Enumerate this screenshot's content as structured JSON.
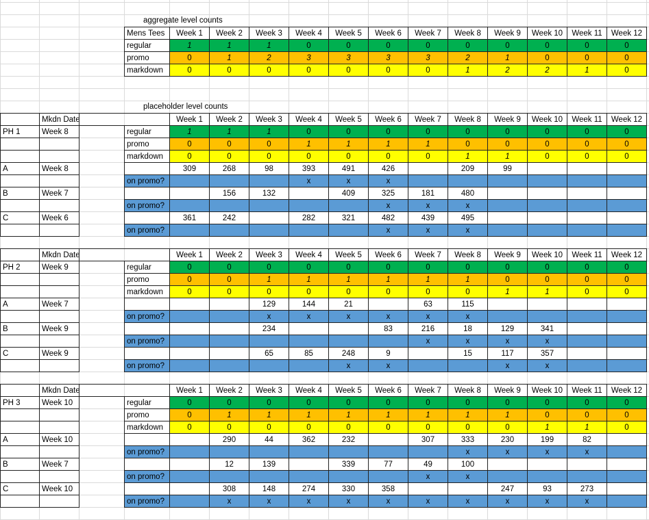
{
  "colors": {
    "regular": "#00b050",
    "promo": "#ffc000",
    "markdown": "#ffff00",
    "on_promo": "#5b9bd5"
  },
  "weeks": [
    "Week 1",
    "Week 2",
    "Week 3",
    "Week 4",
    "Week 5",
    "Week 6",
    "Week 7",
    "Week 8",
    "Week 9",
    "Week 10",
    "Week 11",
    "Week 12"
  ],
  "aggregate": {
    "title": "aggregate level counts",
    "corner": "Mens Tees",
    "rows": [
      {
        "type": "regular",
        "label": "regular",
        "values": [
          "1",
          "1",
          "1",
          "0",
          "0",
          "0",
          "0",
          "0",
          "0",
          "0",
          "0",
          "0"
        ],
        "italic": [
          true,
          true,
          true,
          false,
          false,
          false,
          false,
          false,
          false,
          false,
          false,
          false
        ]
      },
      {
        "type": "promo",
        "label": "promo",
        "values": [
          "0",
          "1",
          "2",
          "3",
          "3",
          "3",
          "3",
          "2",
          "1",
          "0",
          "0",
          "0"
        ],
        "italic": [
          false,
          true,
          true,
          true,
          true,
          true,
          true,
          true,
          true,
          false,
          false,
          false
        ]
      },
      {
        "type": "markdown",
        "label": "markdown",
        "values": [
          "0",
          "0",
          "0",
          "0",
          "0",
          "0",
          "0",
          "1",
          "2",
          "2",
          "1",
          "0"
        ],
        "italic": [
          false,
          false,
          false,
          false,
          false,
          false,
          false,
          true,
          true,
          true,
          true,
          false
        ]
      }
    ]
  },
  "placeholder_title": "placeholder level counts",
  "mkdn_header": "Mkdn Date",
  "on_promo_label": "on promo?",
  "blocks": [
    {
      "name": "PH 1",
      "mkdn": "Week 8",
      "rows": [
        {
          "type": "regular",
          "label": "regular",
          "values": [
            "1",
            "1",
            "1",
            "0",
            "0",
            "0",
            "0",
            "0",
            "0",
            "0",
            "0",
            "0"
          ],
          "italic": [
            true,
            true,
            true,
            false,
            false,
            false,
            false,
            false,
            false,
            false,
            false,
            false
          ]
        },
        {
          "type": "promo",
          "label": "promo",
          "values": [
            "0",
            "0",
            "0",
            "1",
            "1",
            "1",
            "1",
            "0",
            "0",
            "0",
            "0",
            "0"
          ],
          "italic": [
            false,
            false,
            false,
            true,
            true,
            true,
            true,
            false,
            false,
            false,
            false,
            false
          ]
        },
        {
          "type": "markdown",
          "label": "markdown",
          "values": [
            "0",
            "0",
            "0",
            "0",
            "0",
            "0",
            "0",
            "1",
            "1",
            "0",
            "0",
            "0"
          ],
          "italic": [
            false,
            false,
            false,
            false,
            false,
            false,
            false,
            true,
            true,
            false,
            false,
            false
          ]
        }
      ],
      "items": [
        {
          "name": "A",
          "mkdn": "Week 8",
          "counts": [
            "309",
            "268",
            "98",
            "393",
            "491",
            "426",
            "",
            "209",
            "99",
            "",
            "",
            ""
          ],
          "promo": [
            "",
            "",
            "",
            "x",
            "x",
            "x",
            "",
            "",
            "",
            "",
            "",
            ""
          ]
        },
        {
          "name": "B",
          "mkdn": "Week 7",
          "counts": [
            "",
            "156",
            "132",
            "",
            "409",
            "325",
            "181",
            "480",
            "",
            "",
            "",
            ""
          ],
          "promo": [
            "",
            "",
            "",
            "",
            "",
            "x",
            "x",
            "x",
            "",
            "",
            "",
            ""
          ]
        },
        {
          "name": "C",
          "mkdn": "Week 6",
          "counts": [
            "361",
            "242",
            "",
            "282",
            "321",
            "482",
            "439",
            "495",
            "",
            "",
            "",
            ""
          ],
          "promo": [
            "",
            "",
            "",
            "",
            "",
            "x",
            "x",
            "x",
            "",
            "",
            "",
            ""
          ]
        }
      ]
    },
    {
      "name": "PH 2",
      "mkdn": "Week 9",
      "rows": [
        {
          "type": "regular",
          "label": "regular",
          "values": [
            "0",
            "0",
            "0",
            "0",
            "0",
            "0",
            "0",
            "0",
            "0",
            "0",
            "0",
            "0"
          ],
          "italic": [
            false,
            false,
            false,
            false,
            false,
            false,
            false,
            false,
            false,
            false,
            false,
            false
          ]
        },
        {
          "type": "promo",
          "label": "promo",
          "values": [
            "0",
            "0",
            "1",
            "1",
            "1",
            "1",
            "1",
            "1",
            "0",
            "0",
            "0",
            "0"
          ],
          "italic": [
            false,
            false,
            true,
            true,
            true,
            true,
            true,
            true,
            false,
            false,
            false,
            false
          ]
        },
        {
          "type": "markdown",
          "label": "markdown",
          "values": [
            "0",
            "0",
            "0",
            "0",
            "0",
            "0",
            "0",
            "0",
            "1",
            "1",
            "0",
            "0"
          ],
          "italic": [
            false,
            false,
            false,
            false,
            false,
            false,
            false,
            false,
            true,
            true,
            false,
            false
          ]
        }
      ],
      "items": [
        {
          "name": "A",
          "mkdn": "Week 7",
          "counts": [
            "",
            "",
            "129",
            "144",
            "21",
            "",
            "63",
            "115",
            "",
            "",
            "",
            ""
          ],
          "promo": [
            "",
            "",
            "x",
            "x",
            "x",
            "x",
            "x",
            "x",
            "",
            "",
            "",
            ""
          ]
        },
        {
          "name": "B",
          "mkdn": "Week 9",
          "counts": [
            "",
            "",
            "234",
            "",
            "",
            "83",
            "216",
            "18",
            "129",
            "341",
            "",
            ""
          ],
          "promo": [
            "",
            "",
            "",
            "",
            "",
            "",
            "x",
            "x",
            "x",
            "x",
            "",
            ""
          ]
        },
        {
          "name": "C",
          "mkdn": "Week 9",
          "counts": [
            "",
            "",
            "65",
            "85",
            "248",
            "9",
            "",
            "15",
            "117",
            "357",
            "",
            ""
          ],
          "promo": [
            "",
            "",
            "",
            "",
            "x",
            "x",
            "",
            "",
            "x",
            "x",
            "",
            ""
          ]
        }
      ]
    },
    {
      "name": "PH 3",
      "mkdn": "Week 10",
      "rows": [
        {
          "type": "regular",
          "label": "regular",
          "values": [
            "0",
            "0",
            "0",
            "0",
            "0",
            "0",
            "0",
            "0",
            "0",
            "0",
            "0",
            "0"
          ],
          "italic": [
            false,
            false,
            false,
            false,
            false,
            false,
            false,
            false,
            false,
            false,
            false,
            false
          ]
        },
        {
          "type": "promo",
          "label": "promo",
          "values": [
            "0",
            "1",
            "1",
            "1",
            "1",
            "1",
            "1",
            "1",
            "1",
            "0",
            "0",
            "0"
          ],
          "italic": [
            false,
            true,
            true,
            true,
            true,
            true,
            true,
            true,
            true,
            false,
            false,
            false
          ]
        },
        {
          "type": "markdown",
          "label": "markdown",
          "values": [
            "0",
            "0",
            "0",
            "0",
            "0",
            "0",
            "0",
            "0",
            "0",
            "1",
            "1",
            "0"
          ],
          "italic": [
            false,
            false,
            false,
            false,
            false,
            false,
            false,
            false,
            false,
            true,
            true,
            false
          ]
        }
      ],
      "items": [
        {
          "name": "A",
          "mkdn": "Week 10",
          "counts": [
            "",
            "290",
            "44",
            "362",
            "232",
            "",
            "307",
            "333",
            "230",
            "199",
            "82",
            ""
          ],
          "promo": [
            "",
            "",
            "",
            "",
            "",
            "",
            "",
            "x",
            "x",
            "x",
            "x",
            ""
          ]
        },
        {
          "name": "B",
          "mkdn": "Week 7",
          "counts": [
            "",
            "12",
            "139",
            "",
            "339",
            "77",
            "49",
            "100",
            "",
            "",
            "",
            ""
          ],
          "promo": [
            "",
            "",
            "",
            "",
            "",
            "",
            "x",
            "x",
            "",
            "",
            "",
            ""
          ]
        },
        {
          "name": "C",
          "mkdn": "Week 10",
          "counts": [
            "",
            "308",
            "148",
            "274",
            "330",
            "358",
            "",
            "",
            "247",
            "93",
            "273",
            ""
          ],
          "promo": [
            "",
            "x",
            "x",
            "x",
            "x",
            "x",
            "x",
            "x",
            "x",
            "x",
            "x",
            ""
          ]
        }
      ]
    }
  ]
}
